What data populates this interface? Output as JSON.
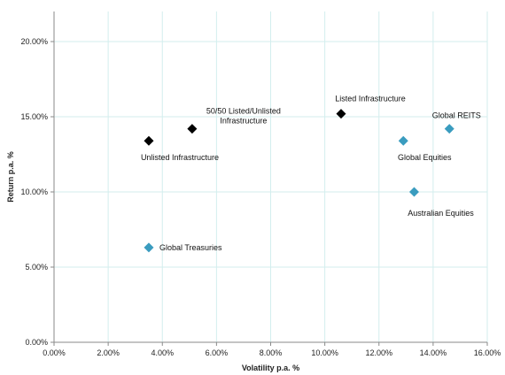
{
  "chart_data": {
    "type": "scatter",
    "title": "",
    "xlabel": "Volatility p.a. %",
    "ylabel": "Return p.a. %",
    "xlim": [
      0,
      16
    ],
    "ylim": [
      0,
      22
    ],
    "x_ticks": [
      0,
      2,
      4,
      6,
      8,
      10,
      12,
      14,
      16
    ],
    "y_ticks": [
      0,
      5,
      10,
      15,
      20
    ],
    "x_tick_labels": [
      "0.00%",
      "2.00%",
      "4.00%",
      "6.00%",
      "8.00%",
      "10.00%",
      "12.00%",
      "14.00%",
      "16.00%"
    ],
    "y_tick_labels": [
      "0.00%",
      "5.00%",
      "10.00%",
      "15.00%",
      "20.00%"
    ],
    "grid": true,
    "legend": "none",
    "series": [
      {
        "color": "#000000",
        "marker": "diamond",
        "points": [
          {
            "label": "Unlisted Infrastructure",
            "x": 3.5,
            "y": 13.4
          },
          {
            "label": "50/50 Listed/Unlisted Infrastructure",
            "x": 5.1,
            "y": 14.2
          },
          {
            "label": "Listed Infrastructure",
            "x": 10.6,
            "y": 15.2
          }
        ]
      },
      {
        "color": "#3a9cbf",
        "marker": "diamond",
        "points": [
          {
            "label": "Global Treasuries",
            "x": 3.5,
            "y": 6.3
          },
          {
            "label": "Global Equities",
            "x": 12.9,
            "y": 13.4
          },
          {
            "label": "Australian Equities",
            "x": 13.3,
            "y": 10.0
          },
          {
            "label": "Global REITS",
            "x": 14.6,
            "y": 14.2
          }
        ]
      }
    ],
    "point_label_lines": {
      "50/50 Listed/Unlisted Infrastructure": [
        "50/50 Listed/Unlisted",
        "Infrastructure"
      ]
    },
    "grid_color": "#d3eeee"
  }
}
